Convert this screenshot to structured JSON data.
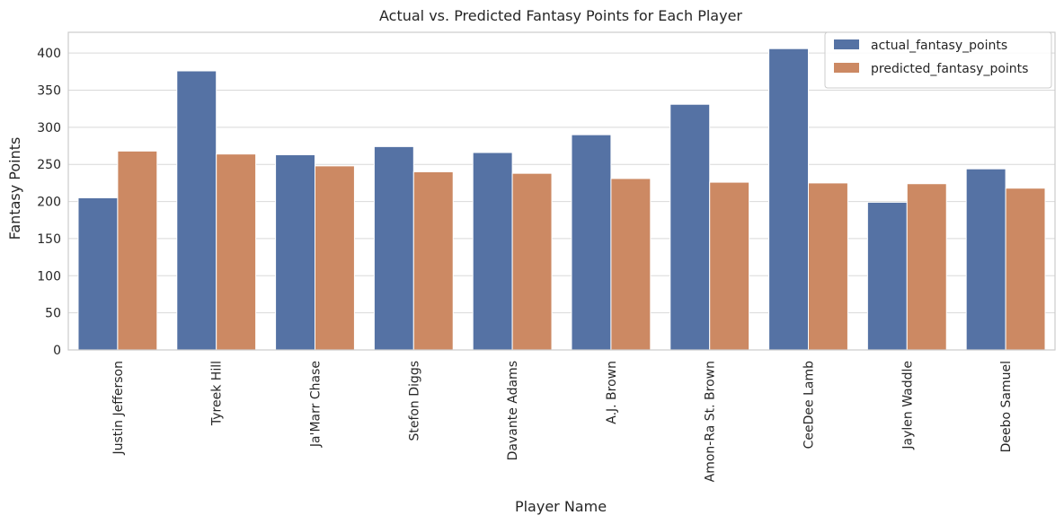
{
  "chart_data": {
    "type": "bar",
    "title": "Actual vs. Predicted Fantasy Points for Each Player",
    "xlabel": "Player Name",
    "ylabel": "Fantasy Points",
    "categories": [
      "Justin Jefferson",
      "Tyreek Hill",
      "Ja'Marr Chase",
      "Stefon Diggs",
      "Davante Adams",
      "A.J. Brown",
      "Amon-Ra St. Brown",
      "CeeDee Lamb",
      "Jaylen Waddle",
      "Deebo Samuel"
    ],
    "series": [
      {
        "name": "actual_fantasy_points",
        "color": "#5572a4",
        "values": [
          205,
          376,
          263,
          274,
          266,
          290,
          331,
          406,
          199,
          244
        ]
      },
      {
        "name": "predicted_fantasy_points",
        "color": "#cc8963",
        "values": [
          268,
          264,
          248,
          240,
          238,
          231,
          226,
          225,
          224,
          218
        ]
      }
    ],
    "ylim": [
      0,
      428
    ],
    "yticks": [
      0,
      50,
      100,
      150,
      200,
      250,
      300,
      350,
      400
    ],
    "grid": true,
    "legend_position": "top-right"
  }
}
